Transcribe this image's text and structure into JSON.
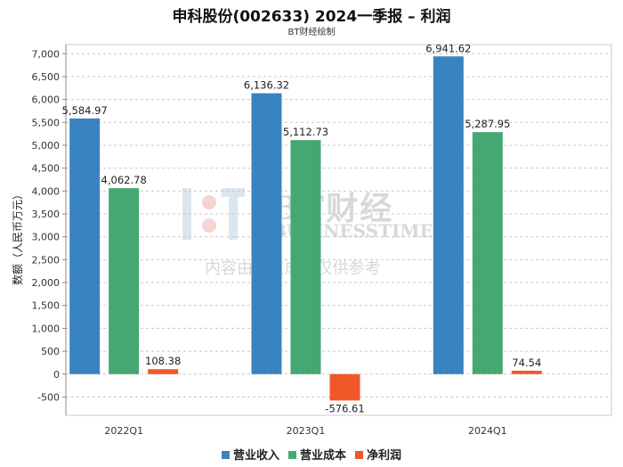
{
  "title": "申科股份(002633) 2024一季报 – 利润",
  "subtitle": "BT财经绘制",
  "watermark": {
    "brand": "BT财经",
    "english": "BUSINESSTIMES",
    "note": "内容由AI生成，仅供参考"
  },
  "chart_data": {
    "type": "bar",
    "title": "申科股份(002633) 2024一季报 – 利润",
    "subtitle": "BT财经绘制",
    "xlabel": "",
    "ylabel": "数额（人民币万元）",
    "categories": [
      "2022Q1",
      "2023Q1",
      "2024Q1"
    ],
    "series": [
      {
        "name": "营业收入",
        "color": "#3a83c1",
        "values": [
          5584.97,
          6136.32,
          6941.62
        ],
        "labels": [
          "5,584.97",
          "6,136.32",
          "6,941.62"
        ]
      },
      {
        "name": "营业成本",
        "color": "#45a873",
        "values": [
          4062.78,
          5112.73,
          5287.95
        ],
        "labels": [
          "4,062.78",
          "5,112.73",
          "5,287.95"
        ]
      },
      {
        "name": "净利润",
        "color": "#f0582a",
        "values": [
          108.38,
          -576.61,
          74.54
        ],
        "labels": [
          "108.38",
          "-576.61",
          "74.54"
        ]
      }
    ],
    "ylim": [
      -900,
      7200
    ],
    "yticks": [
      -500,
      0,
      500,
      1000,
      1500,
      2000,
      2500,
      3000,
      3500,
      4000,
      4500,
      5000,
      5500,
      6000,
      6500,
      7000
    ],
    "ytick_labels": [
      "-500",
      "0",
      "500",
      "1,000",
      "1,500",
      "2,000",
      "2,500",
      "3,000",
      "3,500",
      "4,000",
      "4,500",
      "5,000",
      "5,500",
      "6,000",
      "6,500",
      "7,000"
    ],
    "grid": true,
    "legend": "bottom-center"
  }
}
